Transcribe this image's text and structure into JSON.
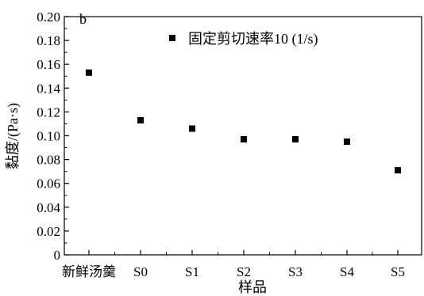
{
  "chart_data": {
    "type": "scatter",
    "panel_label": "b",
    "xlabel": "样品",
    "ylabel": "黏度/(Pa·s)",
    "categories": [
      "新鲜汤羹",
      "S0",
      "S1",
      "S2",
      "S3",
      "S4",
      "S5"
    ],
    "series": [
      {
        "name": "固定剪切速率10 (1/s)",
        "marker": "square",
        "color": "#000000",
        "values": [
          0.153,
          0.113,
          0.106,
          0.097,
          0.097,
          0.095,
          0.071
        ]
      }
    ],
    "ylim": [
      0,
      0.2
    ],
    "yticks": [
      "0",
      "0.02",
      "0.04",
      "0.06",
      "0.08",
      "0.10",
      "0.12",
      "0.14",
      "0.16",
      "0.18",
      "0.20"
    ],
    "legend_position": "top-right",
    "grid": false
  }
}
